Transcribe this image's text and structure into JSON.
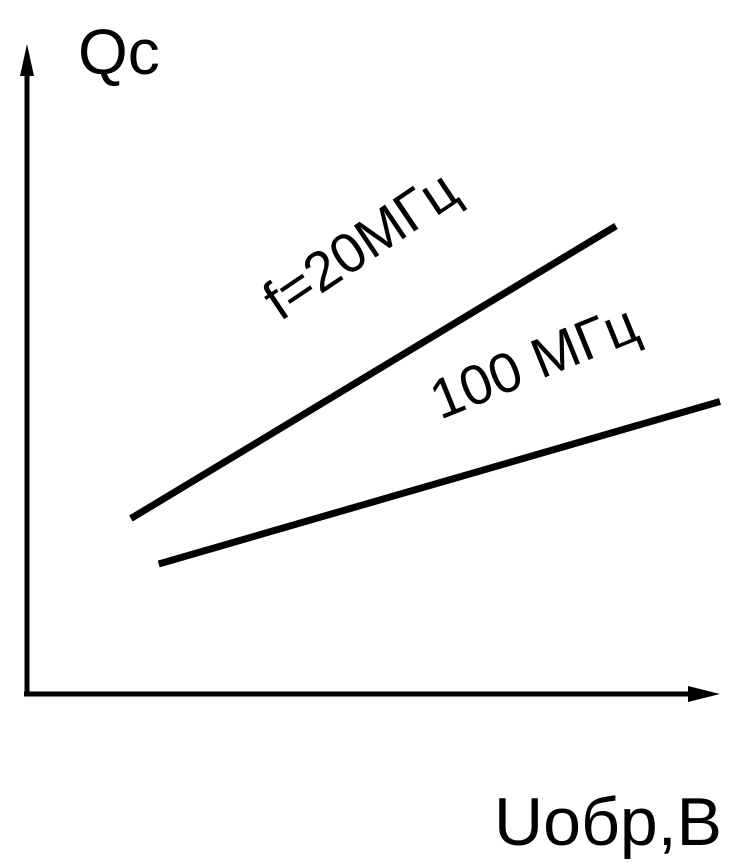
{
  "chart_data": {
    "type": "line",
    "title": "",
    "xlabel": "Uобр,В",
    "ylabel": "Qc",
    "xlim": [
      0,
      10
    ],
    "ylim": [
      0,
      10
    ],
    "grid": false,
    "legend": "inline",
    "series": [
      {
        "name": "f=20МГц",
        "x": [
          1.5,
          8.5
        ],
        "y": [
          2.7,
          7.2
        ]
      },
      {
        "name": "100 МГц",
        "x": [
          1.9,
          10.0
        ],
        "y": [
          2.0,
          4.5
        ]
      }
    ],
    "colors": {
      "line": "#000000",
      "axis": "#000000",
      "background": "#ffffff"
    }
  }
}
